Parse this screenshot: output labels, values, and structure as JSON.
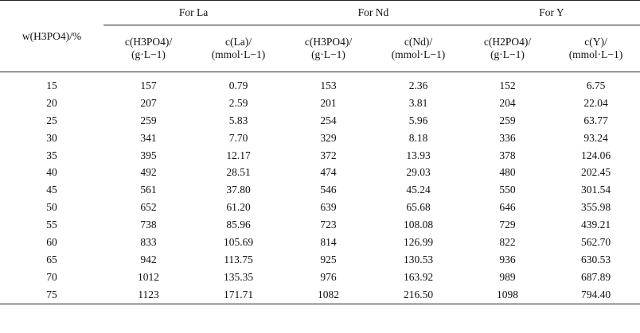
{
  "table": {
    "stub_header": "w(H3PO4)/%",
    "groups": [
      {
        "label": "For La",
        "col1": [
          "c(H3PO4)/",
          "(g·L−1)"
        ],
        "col2": [
          "c(La)/",
          "(mmol·L−1)"
        ]
      },
      {
        "label": "For Nd",
        "col1": [
          "c(H3PO4)/",
          "(g·L−1)"
        ],
        "col2": [
          "c(Nd)/",
          "(mmol·L−1)"
        ]
      },
      {
        "label": "For Y",
        "col1": [
          "c(H2PO4)/",
          "(g·L−1)"
        ],
        "col2": [
          "c(Y)/",
          "(mmol·L−1)"
        ]
      }
    ],
    "rows": [
      [
        "15",
        "157",
        "0.79",
        "153",
        "2.36",
        "152",
        "6.75"
      ],
      [
        "20",
        "207",
        "2.59",
        "201",
        "3.81",
        "204",
        "22.04"
      ],
      [
        "25",
        "259",
        "5.83",
        "254",
        "5.96",
        "259",
        "63.77"
      ],
      [
        "30",
        "341",
        "7.70",
        "329",
        "8.18",
        "336",
        "93.24"
      ],
      [
        "35",
        "395",
        "12.17",
        "372",
        "13.93",
        "378",
        "124.06"
      ],
      [
        "40",
        "492",
        "28.51",
        "474",
        "29.03",
        "480",
        "202.45"
      ],
      [
        "45",
        "561",
        "37.80",
        "546",
        "45.24",
        "550",
        "301.54"
      ],
      [
        "50",
        "652",
        "61.20",
        "639",
        "65.68",
        "646",
        "355.98"
      ],
      [
        "55",
        "738",
        "85.96",
        "723",
        "108.08",
        "729",
        "439.21"
      ],
      [
        "60",
        "833",
        "105.69",
        "814",
        "126.99",
        "822",
        "562.70"
      ],
      [
        "65",
        "942",
        "113.75",
        "925",
        "130.53",
        "936",
        "630.53"
      ],
      [
        "70",
        "1012",
        "135.35",
        "976",
        "163.92",
        "989",
        "687.89"
      ],
      [
        "75",
        "1123",
        "171.71",
        "1082",
        "216.50",
        "1098",
        "794.40"
      ]
    ]
  }
}
